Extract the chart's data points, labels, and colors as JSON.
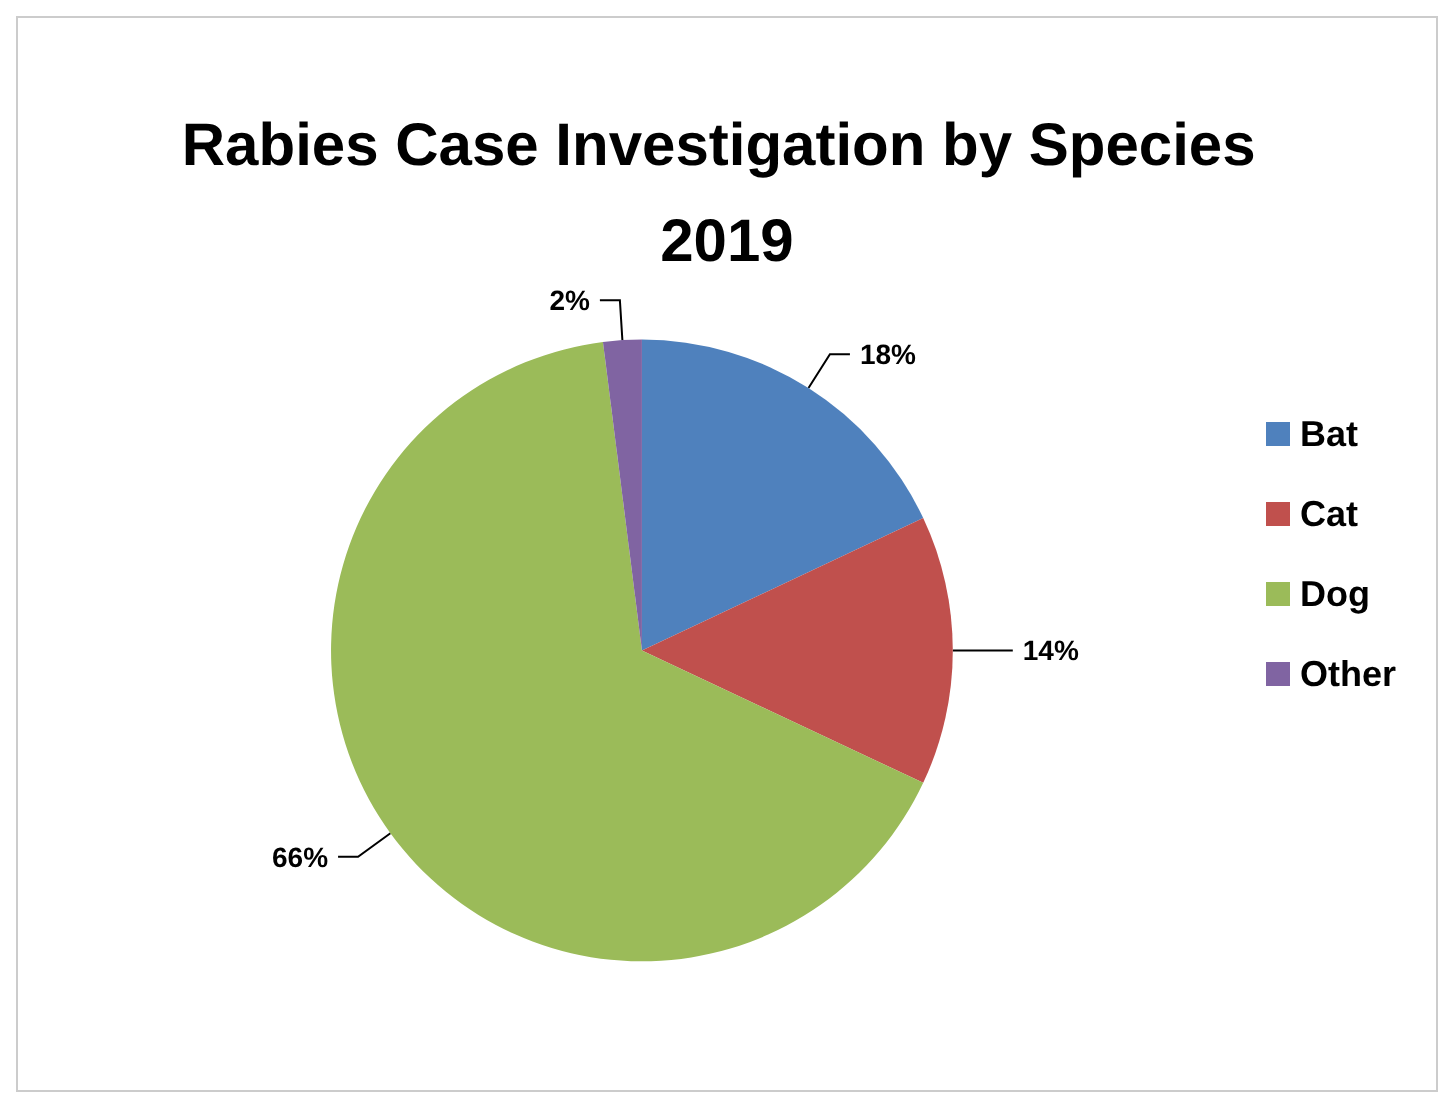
{
  "chart_data": {
    "type": "pie",
    "title": "Rabies Case Investigation by Species 2019",
    "categories": [
      "Bat",
      "Cat",
      "Dog",
      "Other"
    ],
    "values": [
      18,
      14,
      66,
      2
    ],
    "colors": [
      "#4f81bd",
      "#c0504d",
      "#9bbb59",
      "#8064a2"
    ],
    "value_labels": [
      "18%",
      "14%",
      "66%",
      "2%"
    ],
    "legend": "right"
  }
}
